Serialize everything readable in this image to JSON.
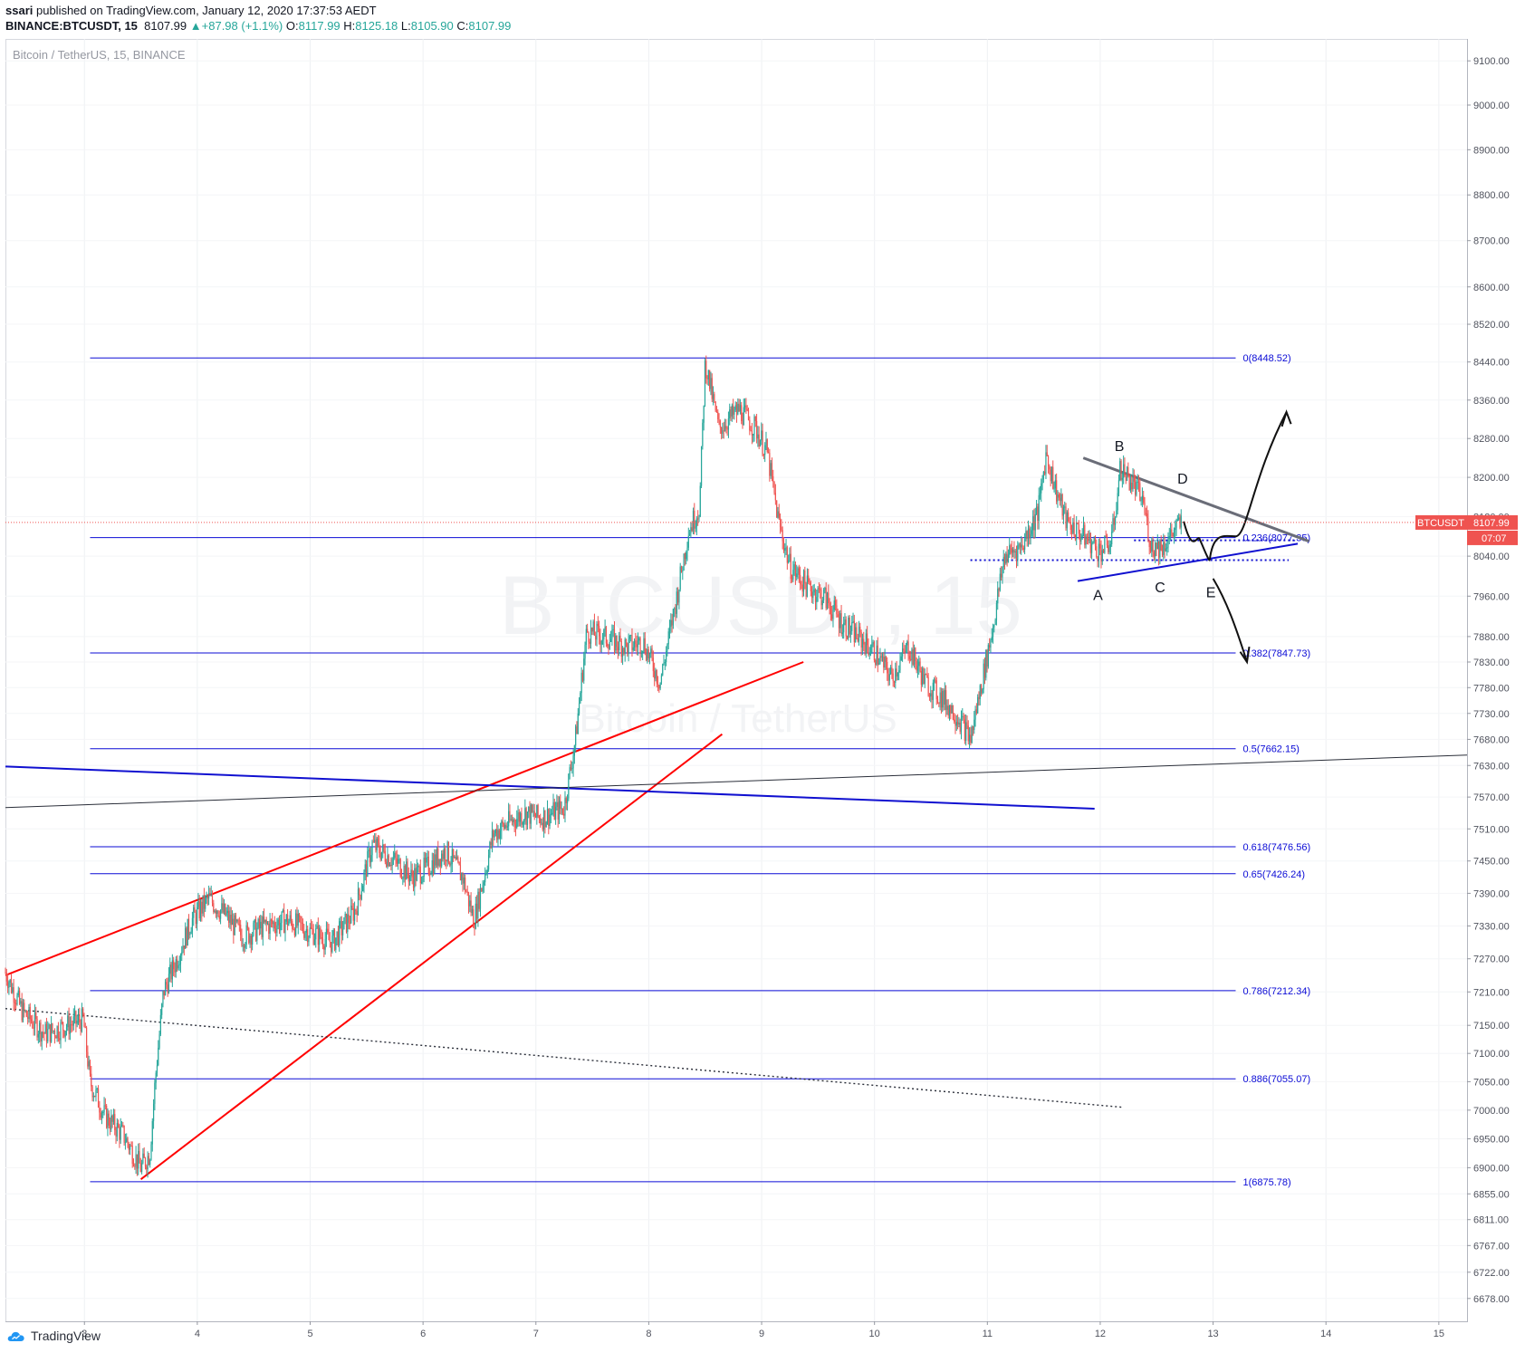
{
  "header": {
    "publisher": "ssari",
    "published_text": " published on TradingView.com, January 12, 2020 17:37:53 AEDT",
    "symbol_line": "BINANCE:BTCUSDT, 15",
    "last": "8107.99",
    "change": "+87.98 (+1.1%)",
    "o_label": "O:",
    "o": "8117.99",
    "h_label": "H:",
    "h": "8125.18",
    "l_label": "L:",
    "l": "8105.90",
    "c_label": "C:",
    "c": "8107.99"
  },
  "subtitle": "Bitcoin / TetherUS, 15, BINANCE",
  "watermark": {
    "line1": "BTCUSDT, 15",
    "line2": "Bitcoin / TetherUS"
  },
  "footer": {
    "brand": "TradingView"
  },
  "colors": {
    "up": "#26a69a",
    "down": "#ef5350",
    "fib": "#0b0bd6",
    "red_line": "#ff0000",
    "trend_blue": "#1010d0",
    "price_line": "#ef5350",
    "axis_text": "#50535e"
  },
  "chart_data": {
    "type": "candlestick",
    "title": "Bitcoin / TetherUS, 15, BINANCE",
    "symbol": "BTCUSDT",
    "interval": "15",
    "y_axis": {
      "ticks": [
        6678,
        6722,
        6767,
        6811,
        6855,
        6900,
        6950,
        7000,
        7050,
        7100,
        7150,
        7210,
        7270,
        7330,
        7390,
        7450,
        7510,
        7570,
        7630,
        7680,
        7730,
        7780,
        7830,
        7880,
        7960,
        8040,
        8120,
        8200,
        8280,
        8360,
        8440,
        8520,
        8600,
        8700,
        8800,
        8900,
        9000,
        9100
      ],
      "tick_labels": [
        "6678.00",
        "6722.00",
        "6767.00",
        "6811.00",
        "6855.00",
        "6900.00",
        "6950.00",
        "7000.00",
        "7050.00",
        "7100.00",
        "7150.00",
        "7210.00",
        "7270.00",
        "7330.00",
        "7390.00",
        "7450.00",
        "7510.00",
        "7570.00",
        "7630.00",
        "7680.00",
        "7730.00",
        "7780.00",
        "7830.00",
        "7880.00",
        "7960.00",
        "8040.00",
        "8120.00",
        "8200.00",
        "8280.00",
        "8360.00",
        "8440.00",
        "8520.00",
        "8600.00",
        "8700.00",
        "8800.00",
        "8900.00",
        "9000.00",
        "9100.00"
      ],
      "scale": "logarithmic",
      "range": [
        6640,
        9150
      ]
    },
    "x_axis": {
      "unit": "day (January 2020)",
      "ticks": [
        3,
        4,
        5,
        6,
        7,
        8,
        9,
        10,
        11,
        12,
        13,
        14,
        15
      ],
      "tick_labels": [
        "3",
        "4",
        "5",
        "6",
        "7",
        "8",
        "9",
        "10",
        "11",
        "12",
        "13",
        "14",
        "15"
      ],
      "range": [
        2.3,
        15.25
      ]
    },
    "price_path": [
      [
        2.3,
        7245
      ],
      [
        2.45,
        7175
      ],
      [
        2.65,
        7135
      ],
      [
        2.85,
        7150
      ],
      [
        2.99,
        7160
      ],
      [
        3.05,
        7050
      ],
      [
        3.18,
        6990
      ],
      [
        3.35,
        6955
      ],
      [
        3.5,
        6900
      ],
      [
        3.58,
        6925
      ],
      [
        3.63,
        7060
      ],
      [
        3.7,
        7210
      ],
      [
        3.82,
        7270
      ],
      [
        3.95,
        7340
      ],
      [
        4.1,
        7380
      ],
      [
        4.25,
        7350
      ],
      [
        4.4,
        7310
      ],
      [
        4.6,
        7330
      ],
      [
        4.8,
        7340
      ],
      [
        5.0,
        7320
      ],
      [
        5.2,
        7300
      ],
      [
        5.4,
        7360
      ],
      [
        5.55,
        7480
      ],
      [
        5.75,
        7450
      ],
      [
        5.9,
        7420
      ],
      [
        6.05,
        7440
      ],
      [
        6.2,
        7470
      ],
      [
        6.35,
        7420
      ],
      [
        6.45,
        7340
      ],
      [
        6.55,
        7430
      ],
      [
        6.62,
        7500
      ],
      [
        6.75,
        7520
      ],
      [
        6.9,
        7540
      ],
      [
        7.05,
        7530
      ],
      [
        7.25,
        7550
      ],
      [
        7.35,
        7680
      ],
      [
        7.45,
        7890
      ],
      [
        7.6,
        7880
      ],
      [
        7.8,
        7860
      ],
      [
        7.95,
        7870
      ],
      [
        8.1,
        7790
      ],
      [
        8.25,
        7960
      ],
      [
        8.35,
        8090
      ],
      [
        8.45,
        8140
      ],
      [
        8.5,
        8440
      ],
      [
        8.62,
        8300
      ],
      [
        8.8,
        8340
      ],
      [
        8.95,
        8300
      ],
      [
        9.05,
        8250
      ],
      [
        9.15,
        8110
      ],
      [
        9.25,
        8020
      ],
      [
        9.4,
        7980
      ],
      [
        9.55,
        7960
      ],
      [
        9.7,
        7910
      ],
      [
        9.85,
        7880
      ],
      [
        10.0,
        7850
      ],
      [
        10.15,
        7800
      ],
      [
        10.3,
        7860
      ],
      [
        10.45,
        7790
      ],
      [
        10.6,
        7760
      ],
      [
        10.75,
        7720
      ],
      [
        10.85,
        7680
      ],
      [
        10.95,
        7790
      ],
      [
        11.05,
        7900
      ],
      [
        11.15,
        8040
      ],
      [
        11.3,
        8060
      ],
      [
        11.45,
        8130
      ],
      [
        11.52,
        8250
      ],
      [
        11.6,
        8180
      ],
      [
        11.7,
        8110
      ],
      [
        11.8,
        8090
      ],
      [
        11.9,
        8070
      ],
      [
        12.0,
        8050
      ],
      [
        12.1,
        8070
      ],
      [
        12.18,
        8220
      ],
      [
        12.28,
        8190
      ],
      [
        12.38,
        8150
      ],
      [
        12.45,
        8060
      ],
      [
        12.55,
        8060
      ],
      [
        12.65,
        8090
      ],
      [
        12.72,
        8108
      ]
    ],
    "fib_levels": [
      {
        "ratio": "0",
        "value": 8448.52,
        "label": "0(8448.52)"
      },
      {
        "ratio": "0.236",
        "value": 8077.35,
        "label": "0.236(8077.35)"
      },
      {
        "ratio": "0.382",
        "value": 7847.73,
        "label": "0.382(7847.73)"
      },
      {
        "ratio": "0.5",
        "value": 7662.15,
        "label": "0.5(7662.15)"
      },
      {
        "ratio": "0.618",
        "value": 7476.56,
        "label": "0.618(7476.56)"
      },
      {
        "ratio": "0.65",
        "value": 7426.24,
        "label": "0.65(7426.24)"
      },
      {
        "ratio": "0.786",
        "value": 7212.34,
        "label": "0.786(7212.34)"
      },
      {
        "ratio": "0.886",
        "value": 7055.07,
        "label": "0.886(7055.07)"
      },
      {
        "ratio": "1",
        "value": 6875.78,
        "label": "1(6875.78)"
      }
    ],
    "fib_x_range": [
      3.05,
      13.2
    ],
    "trendlines": [
      {
        "name": "wedge-upper",
        "color": "red",
        "points": [
          [
            2.3,
            7240
          ],
          [
            9.37,
            7830
          ]
        ]
      },
      {
        "name": "wedge-lower",
        "color": "red",
        "points": [
          [
            3.5,
            6880
          ],
          [
            8.65,
            7690
          ]
        ]
      },
      {
        "name": "blue-descending",
        "color": "blue",
        "points": [
          [
            2.3,
            7628
          ],
          [
            11.95,
            7548
          ]
        ]
      },
      {
        "name": "long-ascending",
        "color": "black",
        "points": [
          [
            2.3,
            7550
          ],
          [
            15.25,
            7650
          ]
        ]
      },
      {
        "name": "dotted-descending",
        "color": "black-dotted",
        "points": [
          [
            2.3,
            7180
          ],
          [
            12.2,
            7005
          ]
        ]
      },
      {
        "name": "triangle-upper",
        "color": "gray",
        "points": [
          [
            11.85,
            8240
          ],
          [
            13.85,
            8070
          ]
        ]
      },
      {
        "name": "triangle-lower",
        "color": "blue",
        "points": [
          [
            11.8,
            7990
          ],
          [
            13.75,
            8065
          ]
        ]
      },
      {
        "name": "dotted-level-high",
        "color": "blue-dotted",
        "points": [
          [
            12.3,
            8072
          ],
          [
            13.72,
            8072
          ]
        ]
      },
      {
        "name": "dotted-level-low",
        "color": "blue-dotted",
        "points": [
          [
            10.85,
            8032
          ],
          [
            13.67,
            8032
          ]
        ]
      }
    ],
    "wave_labels": [
      {
        "text": "A",
        "x": 11.98,
        "y": 7952
      },
      {
        "text": "B",
        "x": 12.17,
        "y": 8254
      },
      {
        "text": "C",
        "x": 12.53,
        "y": 7968
      },
      {
        "text": "D",
        "x": 12.73,
        "y": 8187
      },
      {
        "text": "E",
        "x": 12.98,
        "y": 7958
      }
    ],
    "last_price": {
      "symbol": "BTCUSDT",
      "value": "8107.99",
      "price": 8107.99,
      "countdown": "07:07"
    }
  }
}
